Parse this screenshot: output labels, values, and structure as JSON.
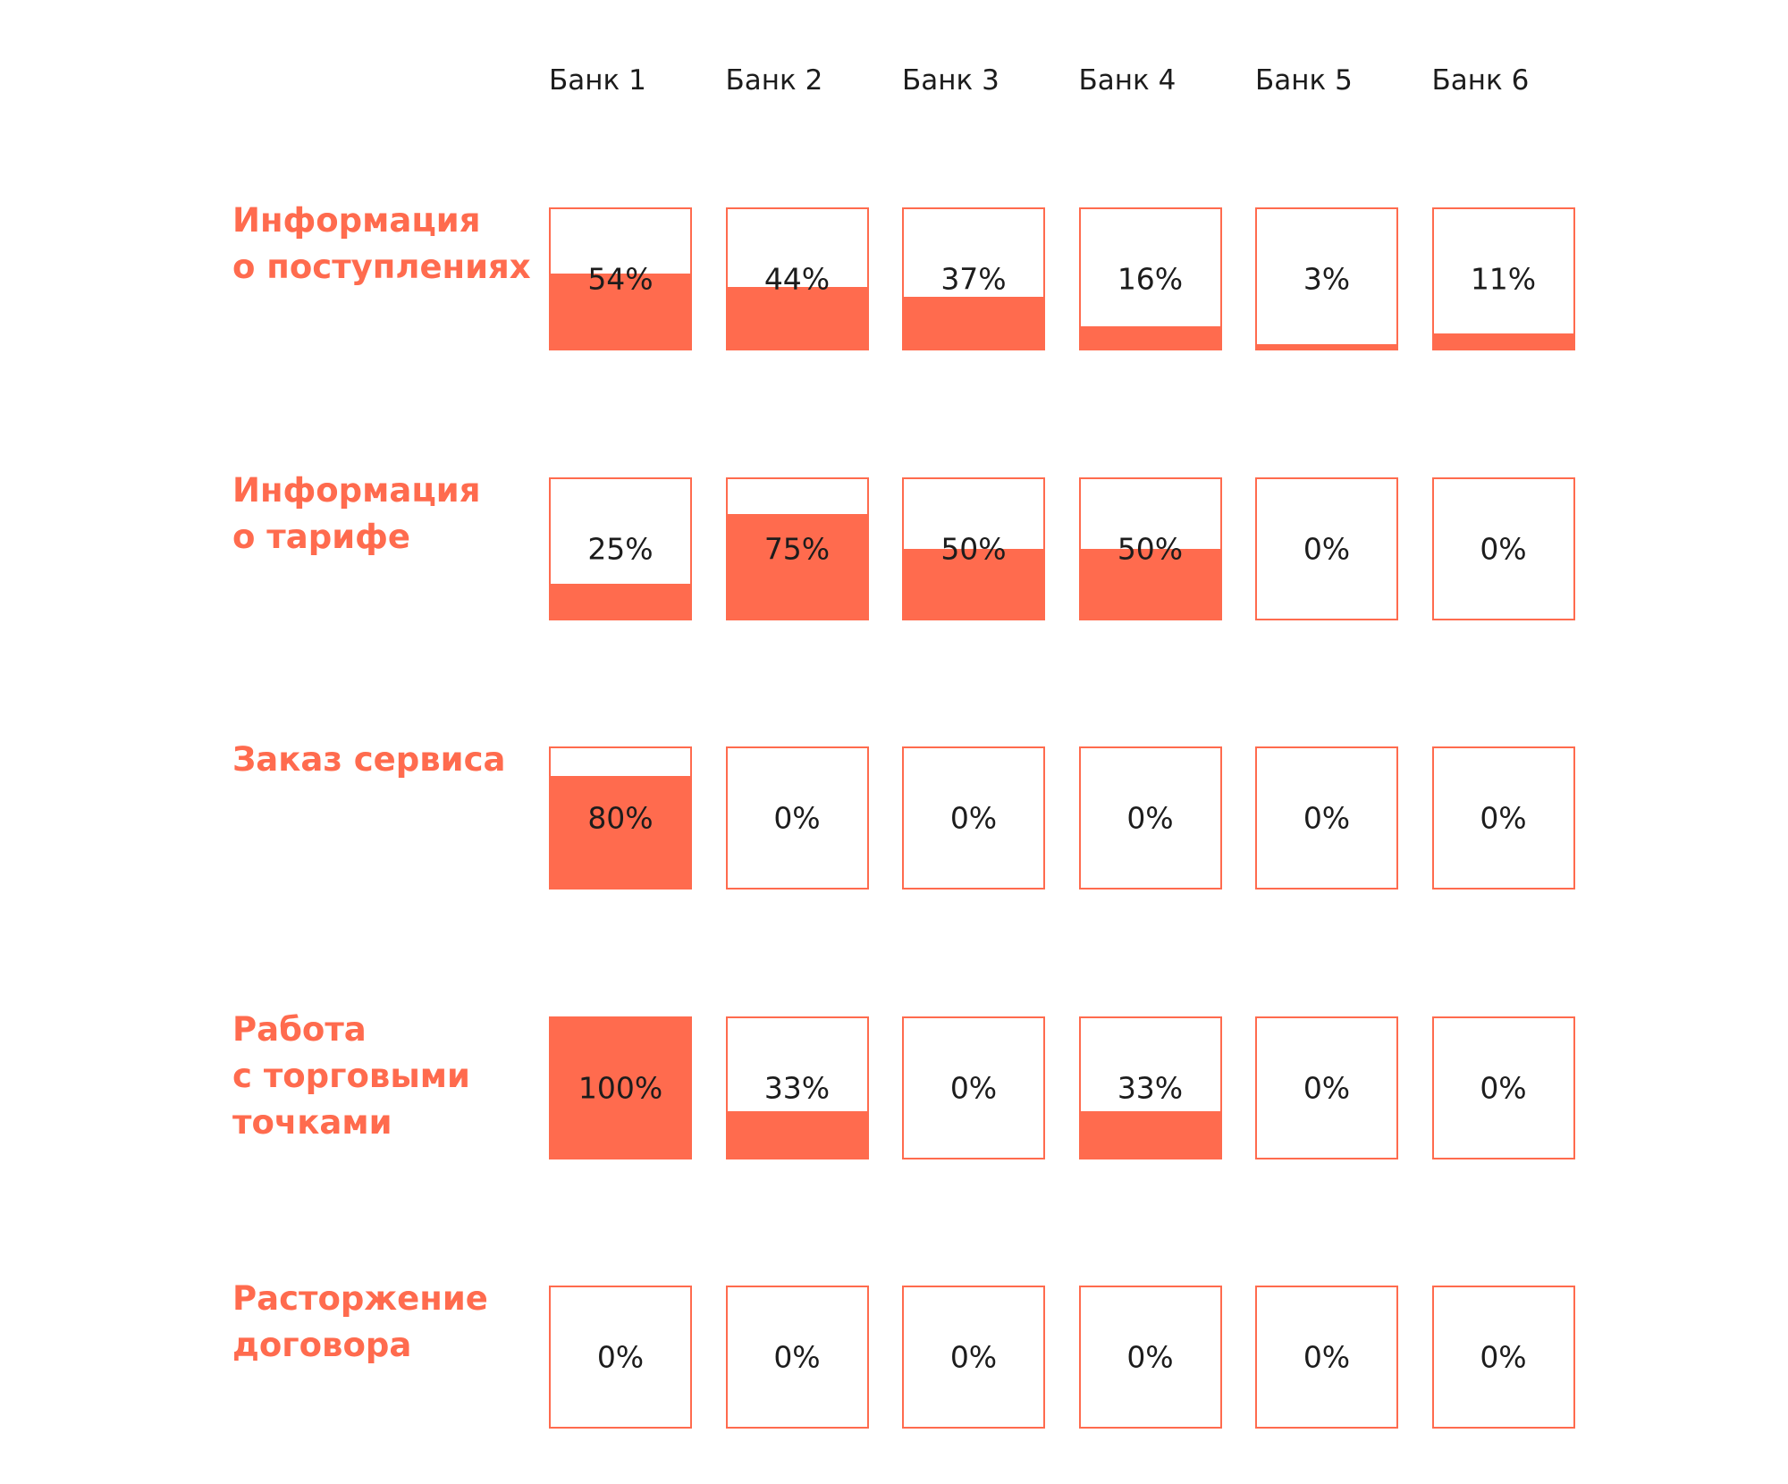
{
  "colors": {
    "accent": "#ff6b4e",
    "text": "#1c1c1c",
    "background": "#ffffff"
  },
  "chart_data": {
    "type": "table",
    "title": "",
    "unit": "%",
    "columns": [
      "Банк 1",
      "Банк 2",
      "Банк 3",
      "Банк 4",
      "Банк 5",
      "Банк 6"
    ],
    "rows": [
      {
        "label_lines": [
          "Информация",
          "о поступлениях"
        ],
        "values": [
          54,
          44,
          37,
          16,
          3,
          11
        ],
        "labels": [
          "54%",
          "44%",
          "37%",
          "16%",
          "3%",
          "11%"
        ]
      },
      {
        "label_lines": [
          "Информация",
          "о тарифе"
        ],
        "values": [
          25,
          75,
          50,
          50,
          0,
          0
        ],
        "labels": [
          "25%",
          "75%",
          "50%",
          "50%",
          "0%",
          "0%"
        ]
      },
      {
        "label_lines": [
          "Заказ сервиса"
        ],
        "values": [
          80,
          0,
          0,
          0,
          0,
          0
        ],
        "labels": [
          "80%",
          "0%",
          "0%",
          "0%",
          "0%",
          "0%"
        ]
      },
      {
        "label_lines": [
          "Работа",
          "с торговыми",
          "точками"
        ],
        "values": [
          100,
          33,
          0,
          33,
          0,
          0
        ],
        "labels": [
          "100%",
          "33%",
          "0%",
          "33%",
          "0%",
          "0%"
        ]
      },
      {
        "label_lines": [
          "Расторжение",
          "договора"
        ],
        "values": [
          0,
          0,
          0,
          0,
          0,
          0
        ],
        "labels": [
          "0%",
          "0%",
          "0%",
          "0%",
          "0%",
          "0%"
        ]
      }
    ]
  }
}
